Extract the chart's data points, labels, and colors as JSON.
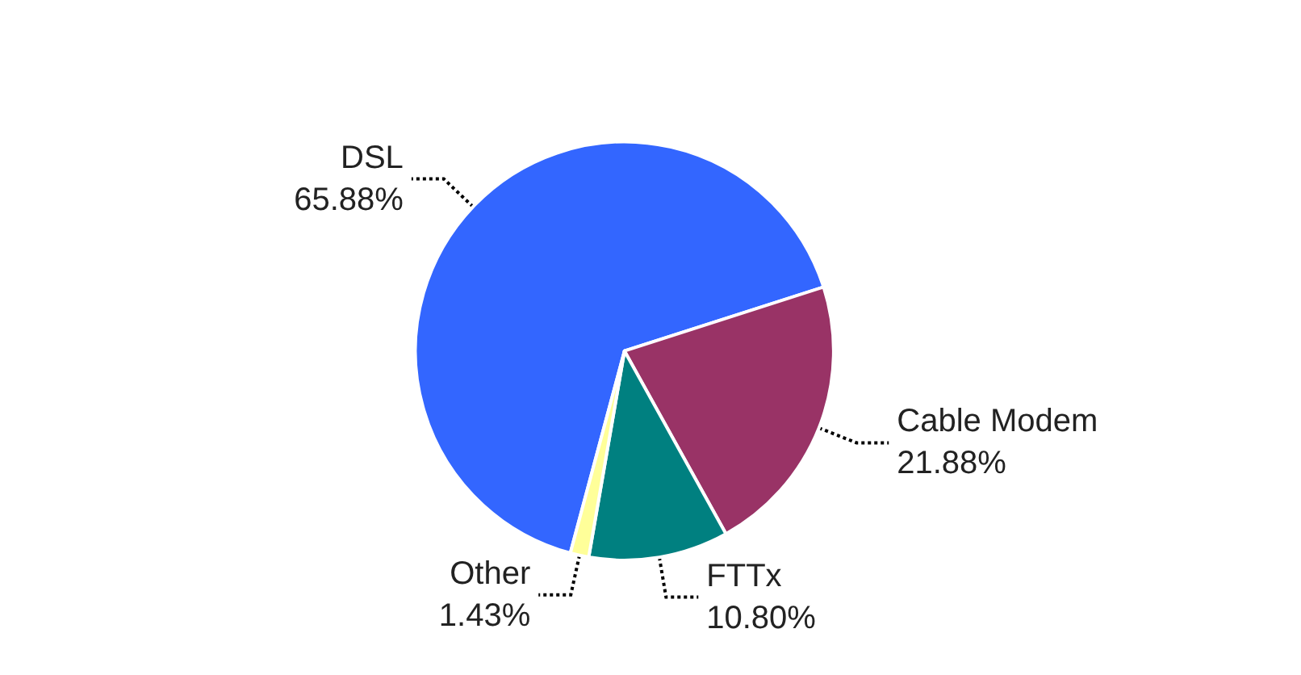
{
  "chart_data": {
    "type": "pie",
    "categories": [
      "DSL",
      "Cable Modem",
      "FTTx",
      "Other"
    ],
    "values": [
      65.88,
      21.88,
      10.8,
      1.43
    ],
    "colors": [
      "#3366ff",
      "#993366",
      "#008080",
      "#ffff99"
    ],
    "value_labels": [
      "65.88%",
      "21.88%",
      "10.80%",
      "1.43%"
    ],
    "legend": false
  }
}
